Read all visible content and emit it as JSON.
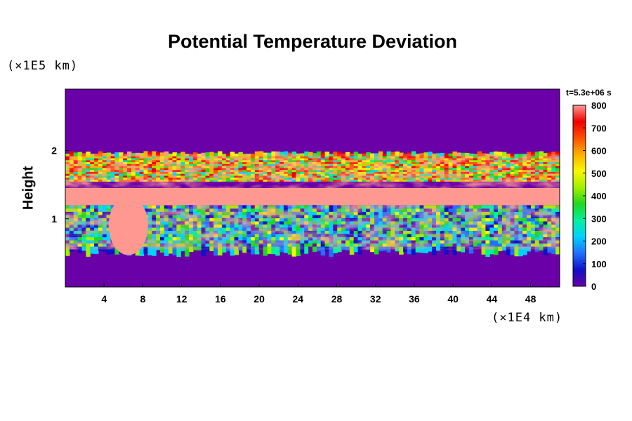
{
  "chart_data": {
    "type": "heatmap",
    "title": "Potential Temperature Deviation",
    "xlabel": "",
    "ylabel": "Height",
    "x_unit_label": "(×1E4 km)",
    "y_unit_label": "(×1E5 km)",
    "time_label": "t=5.3e+06 s",
    "xlim": [
      0,
      51
    ],
    "ylim": [
      0,
      2.9
    ],
    "x_ticks": [
      4,
      8,
      12,
      16,
      20,
      24,
      28,
      32,
      36,
      40,
      44,
      48
    ],
    "y_ticks": [
      1,
      2
    ],
    "colorbar": {
      "min": 0,
      "max": 800,
      "ticks": [
        0,
        100,
        200,
        300,
        400,
        500,
        600,
        700,
        800
      ],
      "colors": [
        "#6a00a8",
        "#1010c8",
        "#1f70ff",
        "#00d0ff",
        "#00f0a0",
        "#20d820",
        "#a0f000",
        "#f8f800",
        "#ffb000",
        "#ff5000",
        "#f00000",
        "#ff9890"
      ]
    },
    "field_description_bands": {
      "background_value": 0,
      "active_layer_height_range": [
        0.55,
        1.95
      ],
      "peak_band_height_range": [
        1.2,
        1.45
      ],
      "peak_value": 800
    }
  }
}
